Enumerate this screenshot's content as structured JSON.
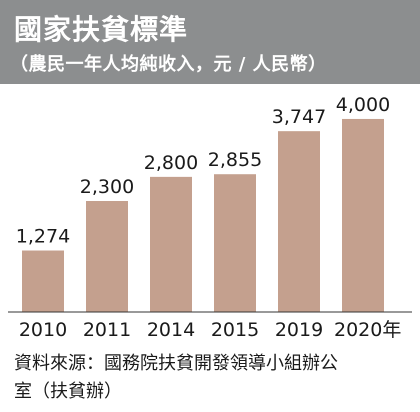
{
  "header": {
    "title": "國家扶貧標準",
    "subtitle": "（農民一年人均純收入，元 / 人民幣）"
  },
  "source": {
    "line1": "資料來源：國務院扶貧開發領導小組辦公",
    "line2": "室（扶貧辦）"
  },
  "colors": {
    "bar": "#c4a08e",
    "header_bg": "#8c8e8f"
  },
  "chart_data": {
    "type": "bar",
    "categories": [
      "2010",
      "2011",
      "2014",
      "2015",
      "2019",
      "2020年"
    ],
    "values": [
      1274,
      2300,
      2800,
      2855,
      3747,
      4000
    ],
    "value_labels": [
      "1,274",
      "2,300",
      "2,800",
      "2,855",
      "3,747",
      "4,000"
    ],
    "title": "國家扶貧標準",
    "subtitle": "（農民一年人均純收入，元 / 人民幣）",
    "xlabel": "",
    "ylabel": "",
    "ylim": [
      0,
      4600
    ],
    "grid": false,
    "legend": "none"
  }
}
